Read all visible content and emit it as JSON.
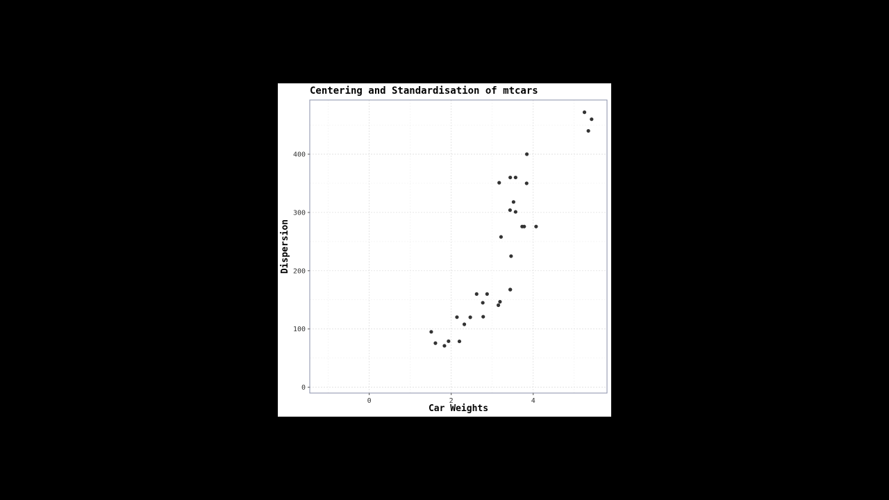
{
  "chart_data": {
    "type": "scatter",
    "title": "Centering and Standardisation of mtcars",
    "xlabel": "Car Weights",
    "ylabel": "Dispersion",
    "xlim": [
      -1.45,
      5.8
    ],
    "ylim": [
      -10,
      493
    ],
    "xticks": [
      0,
      2,
      4
    ],
    "yticks": [
      0,
      100,
      200,
      300,
      400
    ],
    "grid": true,
    "point_color": "#333333",
    "points": [
      {
        "x": 2.62,
        "y": 160
      },
      {
        "x": 2.875,
        "y": 160
      },
      {
        "x": 2.32,
        "y": 108
      },
      {
        "x": 3.215,
        "y": 258
      },
      {
        "x": 3.44,
        "y": 360
      },
      {
        "x": 3.46,
        "y": 225
      },
      {
        "x": 3.57,
        "y": 360
      },
      {
        "x": 3.19,
        "y": 146.7
      },
      {
        "x": 3.15,
        "y": 140.8
      },
      {
        "x": 3.44,
        "y": 167.6
      },
      {
        "x": 3.44,
        "y": 167.6
      },
      {
        "x": 4.07,
        "y": 275.8
      },
      {
        "x": 3.73,
        "y": 275.8
      },
      {
        "x": 3.78,
        "y": 275.8
      },
      {
        "x": 5.25,
        "y": 472
      },
      {
        "x": 5.424,
        "y": 460
      },
      {
        "x": 5.345,
        "y": 440
      },
      {
        "x": 2.2,
        "y": 78.7
      },
      {
        "x": 1.615,
        "y": 75.7
      },
      {
        "x": 1.835,
        "y": 71.1
      },
      {
        "x": 2.465,
        "y": 120.1
      },
      {
        "x": 3.52,
        "y": 318
      },
      {
        "x": 3.435,
        "y": 304
      },
      {
        "x": 3.84,
        "y": 350
      },
      {
        "x": 3.845,
        "y": 400
      },
      {
        "x": 1.935,
        "y": 79
      },
      {
        "x": 2.14,
        "y": 120.3
      },
      {
        "x": 1.513,
        "y": 95.1
      },
      {
        "x": 3.17,
        "y": 351
      },
      {
        "x": 2.77,
        "y": 145
      },
      {
        "x": 3.57,
        "y": 301
      },
      {
        "x": 2.78,
        "y": 121
      }
    ]
  }
}
